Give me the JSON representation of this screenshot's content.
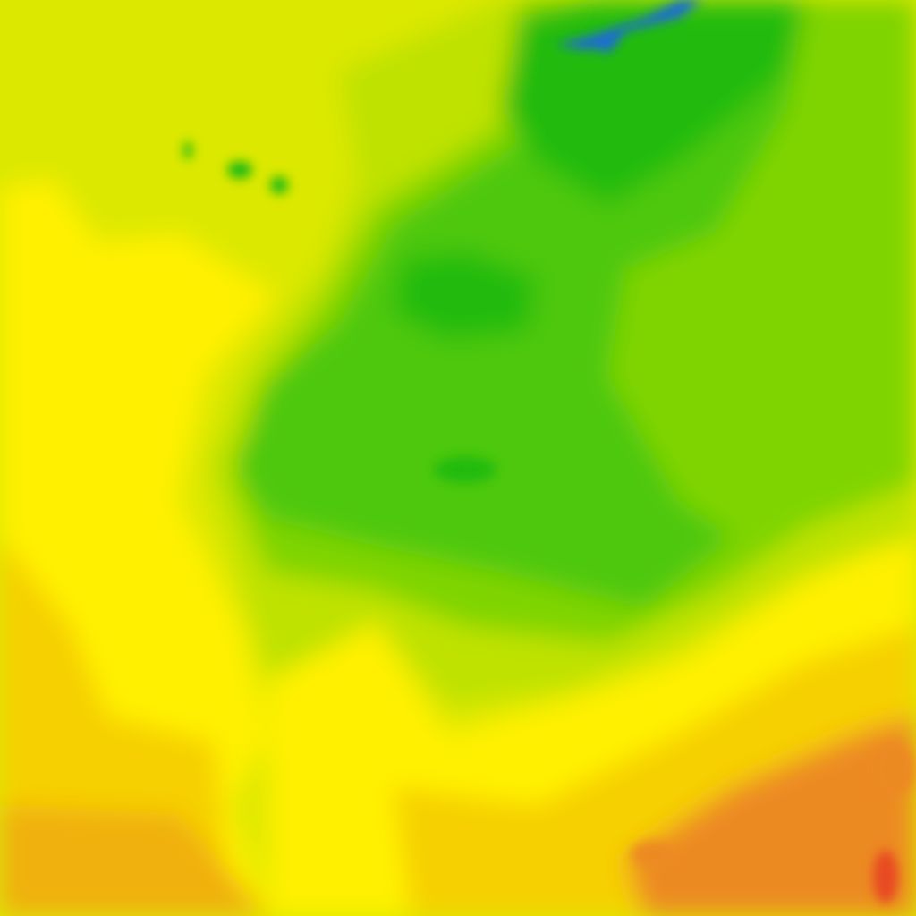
{
  "map": {
    "type": "weather-contour-tile",
    "palette": {
      "blue": "#1a6ad8",
      "deep_green": "#22bb10",
      "green": "#4ec810",
      "light_green": "#7fd400",
      "yellow_green": "#bfe200",
      "lime": "#dce800",
      "yellow": "#fff000",
      "gold": "#f6d000",
      "orange": "#f0b010",
      "dark_orange": "#ec8a20",
      "red": "#e84a20"
    }
  }
}
